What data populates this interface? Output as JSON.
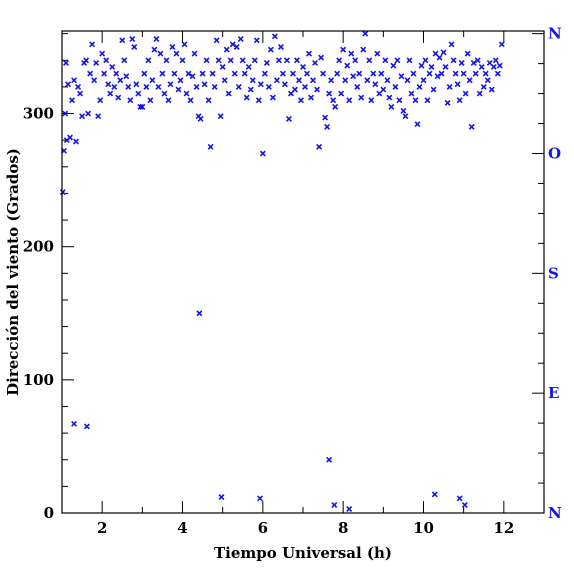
{
  "colors": {
    "points": "#1414e6",
    "axis": "#000000",
    "direction_labels": "#1414e6"
  },
  "chart_data": {
    "type": "scatter",
    "title": "",
    "xlabel": "Tiempo Universal (h)",
    "ylabel": "Dirección del viento (Grados)",
    "xlim": [
      1,
      13
    ],
    "ylim": [
      0,
      362
    ],
    "xticks": [
      2,
      4,
      6,
      8,
      10,
      12
    ],
    "xtick_labels": [
      "2",
      "4",
      "6",
      "8",
      "10",
      "12"
    ],
    "yticks": [
      0,
      100,
      200,
      300
    ],
    "ytick_labels": [
      "0",
      "100",
      "200",
      "300"
    ],
    "marker": "x",
    "right_axis_labels": [
      {
        "label": "N",
        "value": 360
      },
      {
        "label": "O",
        "value": 270
      },
      {
        "label": "S",
        "value": 180
      },
      {
        "label": "E",
        "value": 90
      },
      {
        "label": "N",
        "value": 0
      }
    ],
    "points": [
      [
        1.02,
        241
      ],
      [
        1.05,
        272
      ],
      [
        1.08,
        300
      ],
      [
        1.1,
        338
      ],
      [
        1.12,
        280
      ],
      [
        1.15,
        322
      ],
      [
        1.2,
        282
      ],
      [
        1.25,
        310
      ],
      [
        1.3,
        325
      ],
      [
        1.35,
        279
      ],
      [
        1.4,
        320
      ],
      [
        1.45,
        315
      ],
      [
        1.5,
        298
      ],
      [
        1.55,
        338
      ],
      [
        1.6,
        340
      ],
      [
        1.65,
        300
      ],
      [
        1.7,
        330
      ],
      [
        1.75,
        352
      ],
      [
        1.8,
        325
      ],
      [
        1.85,
        338
      ],
      [
        1.9,
        298
      ],
      [
        1.95,
        310
      ],
      [
        2.0,
        345
      ],
      [
        2.05,
        330
      ],
      [
        2.1,
        340
      ],
      [
        2.15,
        322
      ],
      [
        2.2,
        315
      ],
      [
        2.25,
        335
      ],
      [
        2.3,
        320
      ],
      [
        2.35,
        330
      ],
      [
        2.4,
        312
      ],
      [
        2.45,
        325
      ],
      [
        2.5,
        355
      ],
      [
        2.55,
        340
      ],
      [
        2.6,
        328
      ],
      [
        2.65,
        320
      ],
      [
        2.7,
        310
      ],
      [
        2.75,
        356
      ],
      [
        2.8,
        350
      ],
      [
        2.85,
        322
      ],
      [
        2.9,
        315
      ],
      [
        2.95,
        305
      ],
      [
        3.0,
        305
      ],
      [
        3.05,
        330
      ],
      [
        3.1,
        320
      ],
      [
        3.15,
        340
      ],
      [
        3.2,
        310
      ],
      [
        3.25,
        325
      ],
      [
        3.3,
        348
      ],
      [
        3.35,
        356
      ],
      [
        3.4,
        320
      ],
      [
        3.45,
        345
      ],
      [
        3.5,
        330
      ],
      [
        3.55,
        315
      ],
      [
        3.6,
        340
      ],
      [
        3.65,
        310
      ],
      [
        3.7,
        322
      ],
      [
        3.75,
        350
      ],
      [
        3.8,
        330
      ],
      [
        3.85,
        345
      ],
      [
        3.9,
        318
      ],
      [
        3.95,
        325
      ],
      [
        4.0,
        340
      ],
      [
        4.05,
        352
      ],
      [
        4.1,
        315
      ],
      [
        4.15,
        330
      ],
      [
        4.2,
        310
      ],
      [
        4.25,
        328
      ],
      [
        4.3,
        345
      ],
      [
        4.35,
        320
      ],
      [
        4.4,
        298
      ],
      [
        4.45,
        296
      ],
      [
        4.5,
        330
      ],
      [
        4.55,
        322
      ],
      [
        4.6,
        340
      ],
      [
        4.65,
        310
      ],
      [
        4.7,
        275
      ],
      [
        4.75,
        330
      ],
      [
        4.8,
        320
      ],
      [
        4.85,
        355
      ],
      [
        4.9,
        340
      ],
      [
        4.95,
        298
      ],
      [
        5.0,
        335
      ],
      [
        5.05,
        325
      ],
      [
        5.1,
        348
      ],
      [
        5.15,
        315
      ],
      [
        5.2,
        340
      ],
      [
        5.25,
        352
      ],
      [
        5.3,
        330
      ],
      [
        5.35,
        350
      ],
      [
        5.4,
        320
      ],
      [
        5.45,
        356
      ],
      [
        5.5,
        340
      ],
      [
        5.55,
        330
      ],
      [
        5.6,
        312
      ],
      [
        5.65,
        335
      ],
      [
        5.7,
        318
      ],
      [
        5.75,
        325
      ],
      [
        5.8,
        340
      ],
      [
        5.85,
        355
      ],
      [
        5.9,
        310
      ],
      [
        5.95,
        322
      ],
      [
        6.0,
        270
      ],
      [
        6.05,
        330
      ],
      [
        6.1,
        338
      ],
      [
        6.15,
        320
      ],
      [
        6.2,
        348
      ],
      [
        6.25,
        312
      ],
      [
        6.3,
        358
      ],
      [
        6.35,
        325
      ],
      [
        6.4,
        340
      ],
      [
        6.45,
        350
      ],
      [
        6.5,
        330
      ],
      [
        6.55,
        322
      ],
      [
        6.6,
        340
      ],
      [
        6.65,
        296
      ],
      [
        6.7,
        315
      ],
      [
        6.75,
        330
      ],
      [
        6.8,
        318
      ],
      [
        6.85,
        340
      ],
      [
        6.9,
        325
      ],
      [
        6.95,
        310
      ],
      [
        7.0,
        335
      ],
      [
        7.05,
        320
      ],
      [
        7.1,
        330
      ],
      [
        7.15,
        345
      ],
      [
        7.2,
        312
      ],
      [
        7.25,
        325
      ],
      [
        7.3,
        338
      ],
      [
        7.35,
        318
      ],
      [
        7.4,
        275
      ],
      [
        7.45,
        342
      ],
      [
        7.5,
        330
      ],
      [
        7.55,
        297
      ],
      [
        7.6,
        290
      ],
      [
        7.65,
        315
      ],
      [
        7.7,
        325
      ],
      [
        7.75,
        310
      ],
      [
        7.8,
        305
      ],
      [
        7.85,
        330
      ],
      [
        7.9,
        340
      ],
      [
        7.95,
        315
      ],
      [
        8.0,
        348
      ],
      [
        8.05,
        325
      ],
      [
        8.1,
        336
      ],
      [
        8.15,
        310
      ],
      [
        8.2,
        345
      ],
      [
        8.25,
        328
      ],
      [
        8.3,
        340
      ],
      [
        8.35,
        320
      ],
      [
        8.4,
        330
      ],
      [
        8.45,
        312
      ],
      [
        8.5,
        348
      ],
      [
        8.55,
        360
      ],
      [
        8.6,
        325
      ],
      [
        8.65,
        340
      ],
      [
        8.7,
        310
      ],
      [
        8.75,
        330
      ],
      [
        8.8,
        322
      ],
      [
        8.85,
        345
      ],
      [
        8.9,
        315
      ],
      [
        8.95,
        330
      ],
      [
        9.0,
        318
      ],
      [
        9.05,
        340
      ],
      [
        9.1,
        325
      ],
      [
        9.15,
        312
      ],
      [
        9.2,
        305
      ],
      [
        9.25,
        336
      ],
      [
        9.3,
        320
      ],
      [
        9.35,
        340
      ],
      [
        9.4,
        310
      ],
      [
        9.45,
        328
      ],
      [
        9.5,
        302
      ],
      [
        9.55,
        298
      ],
      [
        9.6,
        325
      ],
      [
        9.65,
        340
      ],
      [
        9.7,
        315
      ],
      [
        9.75,
        330
      ],
      [
        9.8,
        310
      ],
      [
        9.85,
        292
      ],
      [
        9.9,
        320
      ],
      [
        9.95,
        336
      ],
      [
        10.0,
        325
      ],
      [
        10.05,
        340
      ],
      [
        10.1,
        310
      ],
      [
        10.15,
        330
      ],
      [
        10.2,
        335
      ],
      [
        10.25,
        318
      ],
      [
        10.3,
        345
      ],
      [
        10.35,
        328
      ],
      [
        10.4,
        342
      ],
      [
        10.45,
        330
      ],
      [
        10.5,
        346
      ],
      [
        10.55,
        335
      ],
      [
        10.6,
        308
      ],
      [
        10.65,
        320
      ],
      [
        10.7,
        352
      ],
      [
        10.75,
        340
      ],
      [
        10.8,
        330
      ],
      [
        10.85,
        322
      ],
      [
        10.9,
        310
      ],
      [
        10.95,
        338
      ],
      [
        11.0,
        330
      ],
      [
        11.05,
        315
      ],
      [
        11.1,
        345
      ],
      [
        11.15,
        325
      ],
      [
        11.2,
        290
      ],
      [
        11.25,
        338
      ],
      [
        11.3,
        330
      ],
      [
        11.35,
        340
      ],
      [
        11.4,
        315
      ],
      [
        11.45,
        335
      ],
      [
        11.5,
        320
      ],
      [
        11.55,
        330
      ],
      [
        11.6,
        325
      ],
      [
        11.65,
        338
      ],
      [
        11.7,
        318
      ],
      [
        11.75,
        335
      ],
      [
        11.8,
        340
      ],
      [
        11.85,
        330
      ],
      [
        11.9,
        336
      ],
      [
        11.95,
        352
      ],
      [
        1.3,
        67
      ],
      [
        1.62,
        65
      ],
      [
        4.42,
        150
      ],
      [
        4.97,
        12
      ],
      [
        5.93,
        11
      ],
      [
        7.65,
        40
      ],
      [
        7.78,
        6
      ],
      [
        8.15,
        3
      ],
      [
        10.28,
        14
      ],
      [
        10.9,
        11
      ],
      [
        11.03,
        6
      ]
    ]
  }
}
